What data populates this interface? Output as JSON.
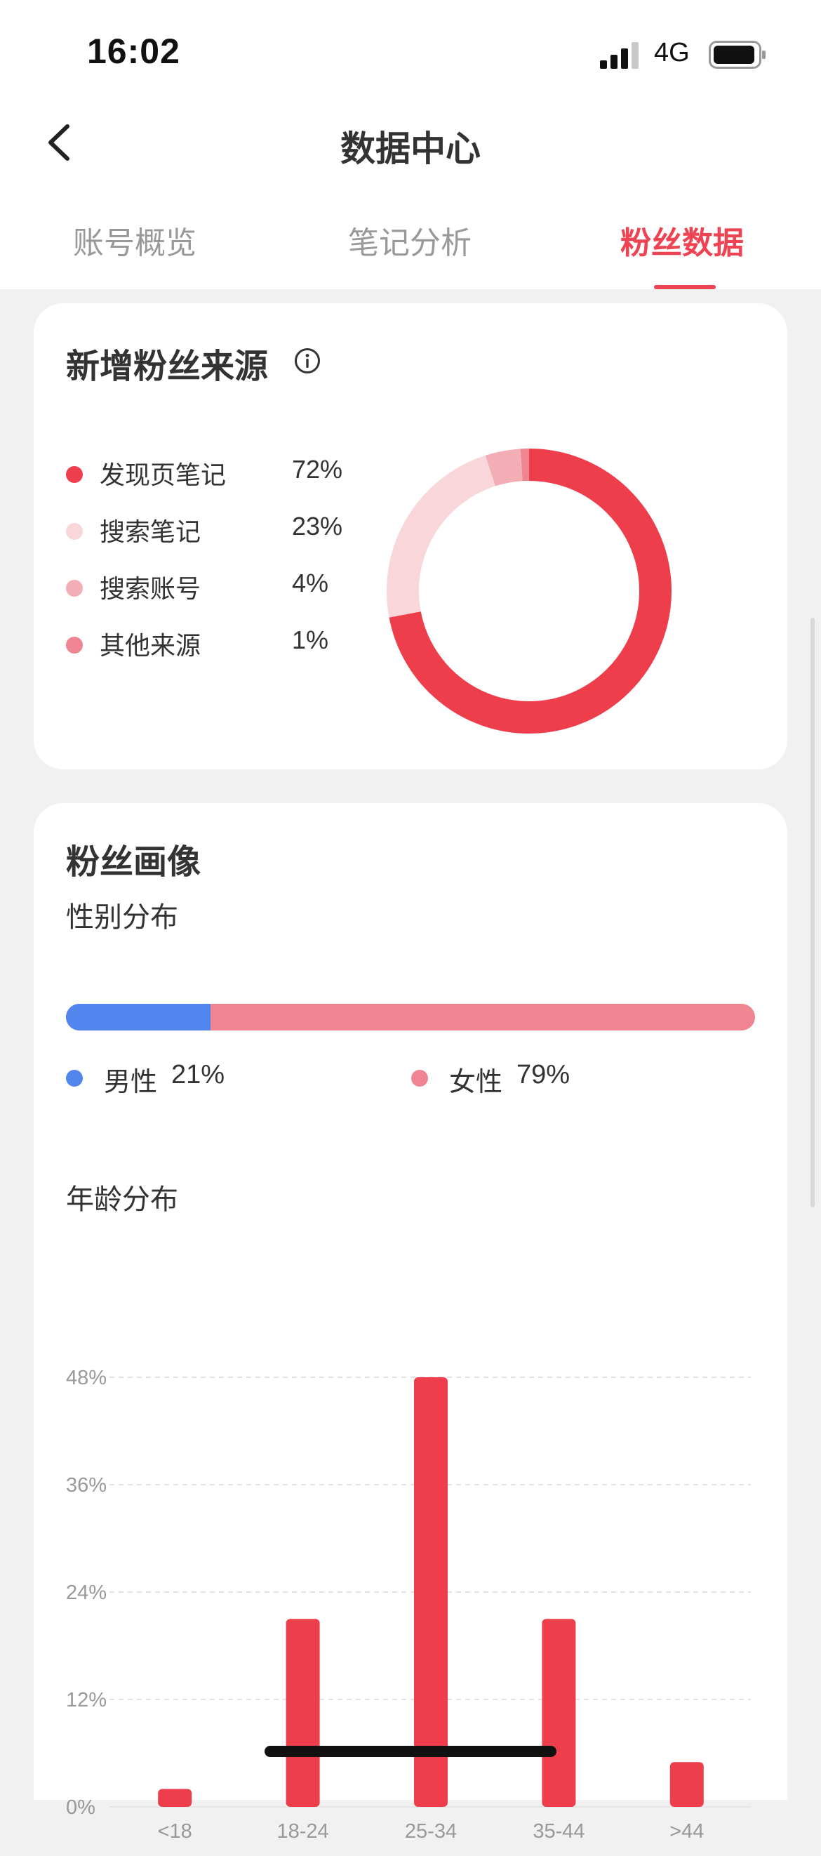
{
  "status_bar": {
    "time": "16:02",
    "network": "4G"
  },
  "nav": {
    "title": "数据中心"
  },
  "tabs": [
    {
      "label": "账号概览",
      "active": false
    },
    {
      "label": "笔记分析",
      "active": false
    },
    {
      "label": "粉丝数据",
      "active": true
    }
  ],
  "fan_source": {
    "title": "新增粉丝来源",
    "items": [
      {
        "label": "发现页笔记",
        "pct": "72%",
        "value": 72,
        "color": "#ee3e4c"
      },
      {
        "label": "搜索笔记",
        "pct": "23%",
        "value": 23,
        "color": "#f9d6da"
      },
      {
        "label": "搜索账号",
        "pct": "4%",
        "value": 4,
        "color": "#f3adb5"
      },
      {
        "label": "其他来源",
        "pct": "1%",
        "value": 1,
        "color": "#ee8591"
      }
    ]
  },
  "fan_profile": {
    "title": "粉丝画像",
    "gender": {
      "title": "性别分布",
      "male": {
        "label": "男性",
        "pct": "21%",
        "value": 21,
        "color": "#5385ef"
      },
      "female": {
        "label": "女性",
        "pct": "79%",
        "value": 79,
        "color": "#ef8590"
      }
    },
    "age_title": "年龄分布"
  },
  "chart_data": {
    "type": "bar",
    "title": "年龄分布",
    "categories": [
      "<18",
      "18-24",
      "25-34",
      "35-44",
      ">44"
    ],
    "values": [
      2,
      21,
      48,
      21,
      5
    ],
    "ylim": [
      0,
      48
    ],
    "yticks": [
      "0%",
      "12%",
      "24%",
      "36%",
      "48%"
    ],
    "grid": true,
    "bar_color": "#ee3e4c"
  }
}
